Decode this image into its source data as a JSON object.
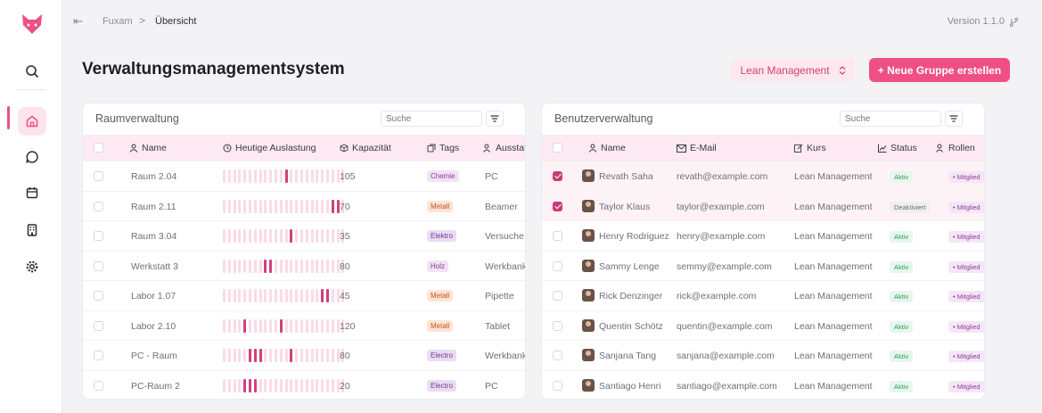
{
  "app": {
    "name": "Fuxam"
  },
  "breadcrumb": {
    "root": "Fuxam",
    "separator": ">",
    "current": "Übersicht"
  },
  "version": "Version 1.1.0",
  "page": {
    "title": "Verwaltungsmanagementsystem",
    "select_value": "Lean Management",
    "primary_button": "+ Neue Gruppe erstellen"
  },
  "colors": {
    "accent": "#ef4f84",
    "tag_chemie": "#f1e2f4",
    "tag_metall": "#fde4d5",
    "tag_elektro": "#eadcf4",
    "tag_holz": "#f1e2f4"
  },
  "sidebar": {
    "items": [
      "search-icon",
      "home-icon",
      "chat-icon",
      "calendar-icon",
      "building-icon",
      "gear-icon"
    ]
  },
  "rooms": {
    "title": "Raumverwaltung",
    "search_placeholder": "Suche",
    "columns": [
      "Name",
      "Heutige Auslastung",
      "Kapazität",
      "Tags",
      "Ausstat"
    ],
    "rows": [
      {
        "name": "Raum 2.04",
        "capacity": "105",
        "tag": "Chemie",
        "tag_color": "#f1e2f4",
        "tag_text": "#8a3c96",
        "equipment": "PC",
        "usage": [
          12
        ]
      },
      {
        "name": "Raum 2.11",
        "capacity": "70",
        "tag": "Metall",
        "tag_color": "#fde4d5",
        "tag_text": "#c2561d",
        "equipment": "Beamer",
        "usage": [
          21,
          22
        ]
      },
      {
        "name": "Raum 3.04",
        "capacity": "35",
        "tag": "Elektro",
        "tag_color": "#eadcf4",
        "tag_text": "#6b3a8c",
        "equipment": "Versuche",
        "usage": [
          13
        ]
      },
      {
        "name": "Werkstatt 3",
        "capacity": "80",
        "tag": "Holz",
        "tag_color": "#f1e2f4",
        "tag_text": "#8a3c96",
        "equipment": "Werkbank",
        "usage": [
          8,
          9
        ]
      },
      {
        "name": "Labor 1.07",
        "capacity": "45",
        "tag": "Metall",
        "tag_color": "#fde4d5",
        "tag_text": "#c2561d",
        "equipment": "Pipette",
        "usage": [
          19,
          20
        ]
      },
      {
        "name": "Labor 2.10",
        "capacity": "120",
        "tag": "Metall",
        "tag_color": "#fde4d5",
        "tag_text": "#c2561d",
        "equipment": "Tablet",
        "usage": [
          4,
          11
        ]
      },
      {
        "name": "PC - Raum",
        "capacity": "80",
        "tag": "Electro",
        "tag_color": "#eadcf4",
        "tag_text": "#6b3a8c",
        "equipment": "Werkbank",
        "usage": [
          5,
          6,
          7,
          13
        ]
      },
      {
        "name": "PC-Raum 2",
        "capacity": "20",
        "tag": "Electro",
        "tag_color": "#eadcf4",
        "tag_text": "#6b3a8c",
        "equipment": "PC",
        "usage": [
          4,
          5,
          6
        ]
      }
    ]
  },
  "users": {
    "title": "Benutzerverwaltung",
    "search_placeholder": "Suche",
    "columns": [
      "Name",
      "E-Mail",
      "Kurs",
      "Status",
      "Rollen"
    ],
    "rows": [
      {
        "name": "Revath Saha",
        "email": "revath@example.com",
        "course": "Lean Management",
        "status": "Aktiv",
        "role": "• Mitglied",
        "checked": true
      },
      {
        "name": "Taylor Klaus",
        "email": "taylor@example.com",
        "course": "Lean Management",
        "status": "Deaktiviert",
        "role": "• Mitglied",
        "checked": true
      },
      {
        "name": "Henry Rodriguez",
        "email": "henry@example.com",
        "course": "Lean Management",
        "status": "Aktiv",
        "role": "• Mitglied",
        "checked": false
      },
      {
        "name": "Sammy Lenge",
        "email": "semmy@example.com",
        "course": "Lean Management",
        "status": "Aktiv",
        "role": "• Mitglied",
        "checked": false
      },
      {
        "name": "Rick Denzinger",
        "email": "rick@example.com",
        "course": "Lean Management",
        "status": "Aktiv",
        "role": "• Mitglied",
        "checked": false
      },
      {
        "name": "Quentin Schötz",
        "email": "quentin@example.com",
        "course": "Lean Management",
        "status": "Aktiv",
        "role": "• Mitglied",
        "checked": false
      },
      {
        "name": "Sanjana Tang",
        "email": "sanjana@example.com",
        "course": "Lean Management",
        "status": "Aktiv",
        "role": "• Mitglied",
        "checked": false
      },
      {
        "name": "Santiago Henri",
        "email": "santiago@example.com",
        "course": "Lean Management",
        "status": "Aktiv",
        "role": "• Mitglied",
        "checked": false
      }
    ]
  }
}
